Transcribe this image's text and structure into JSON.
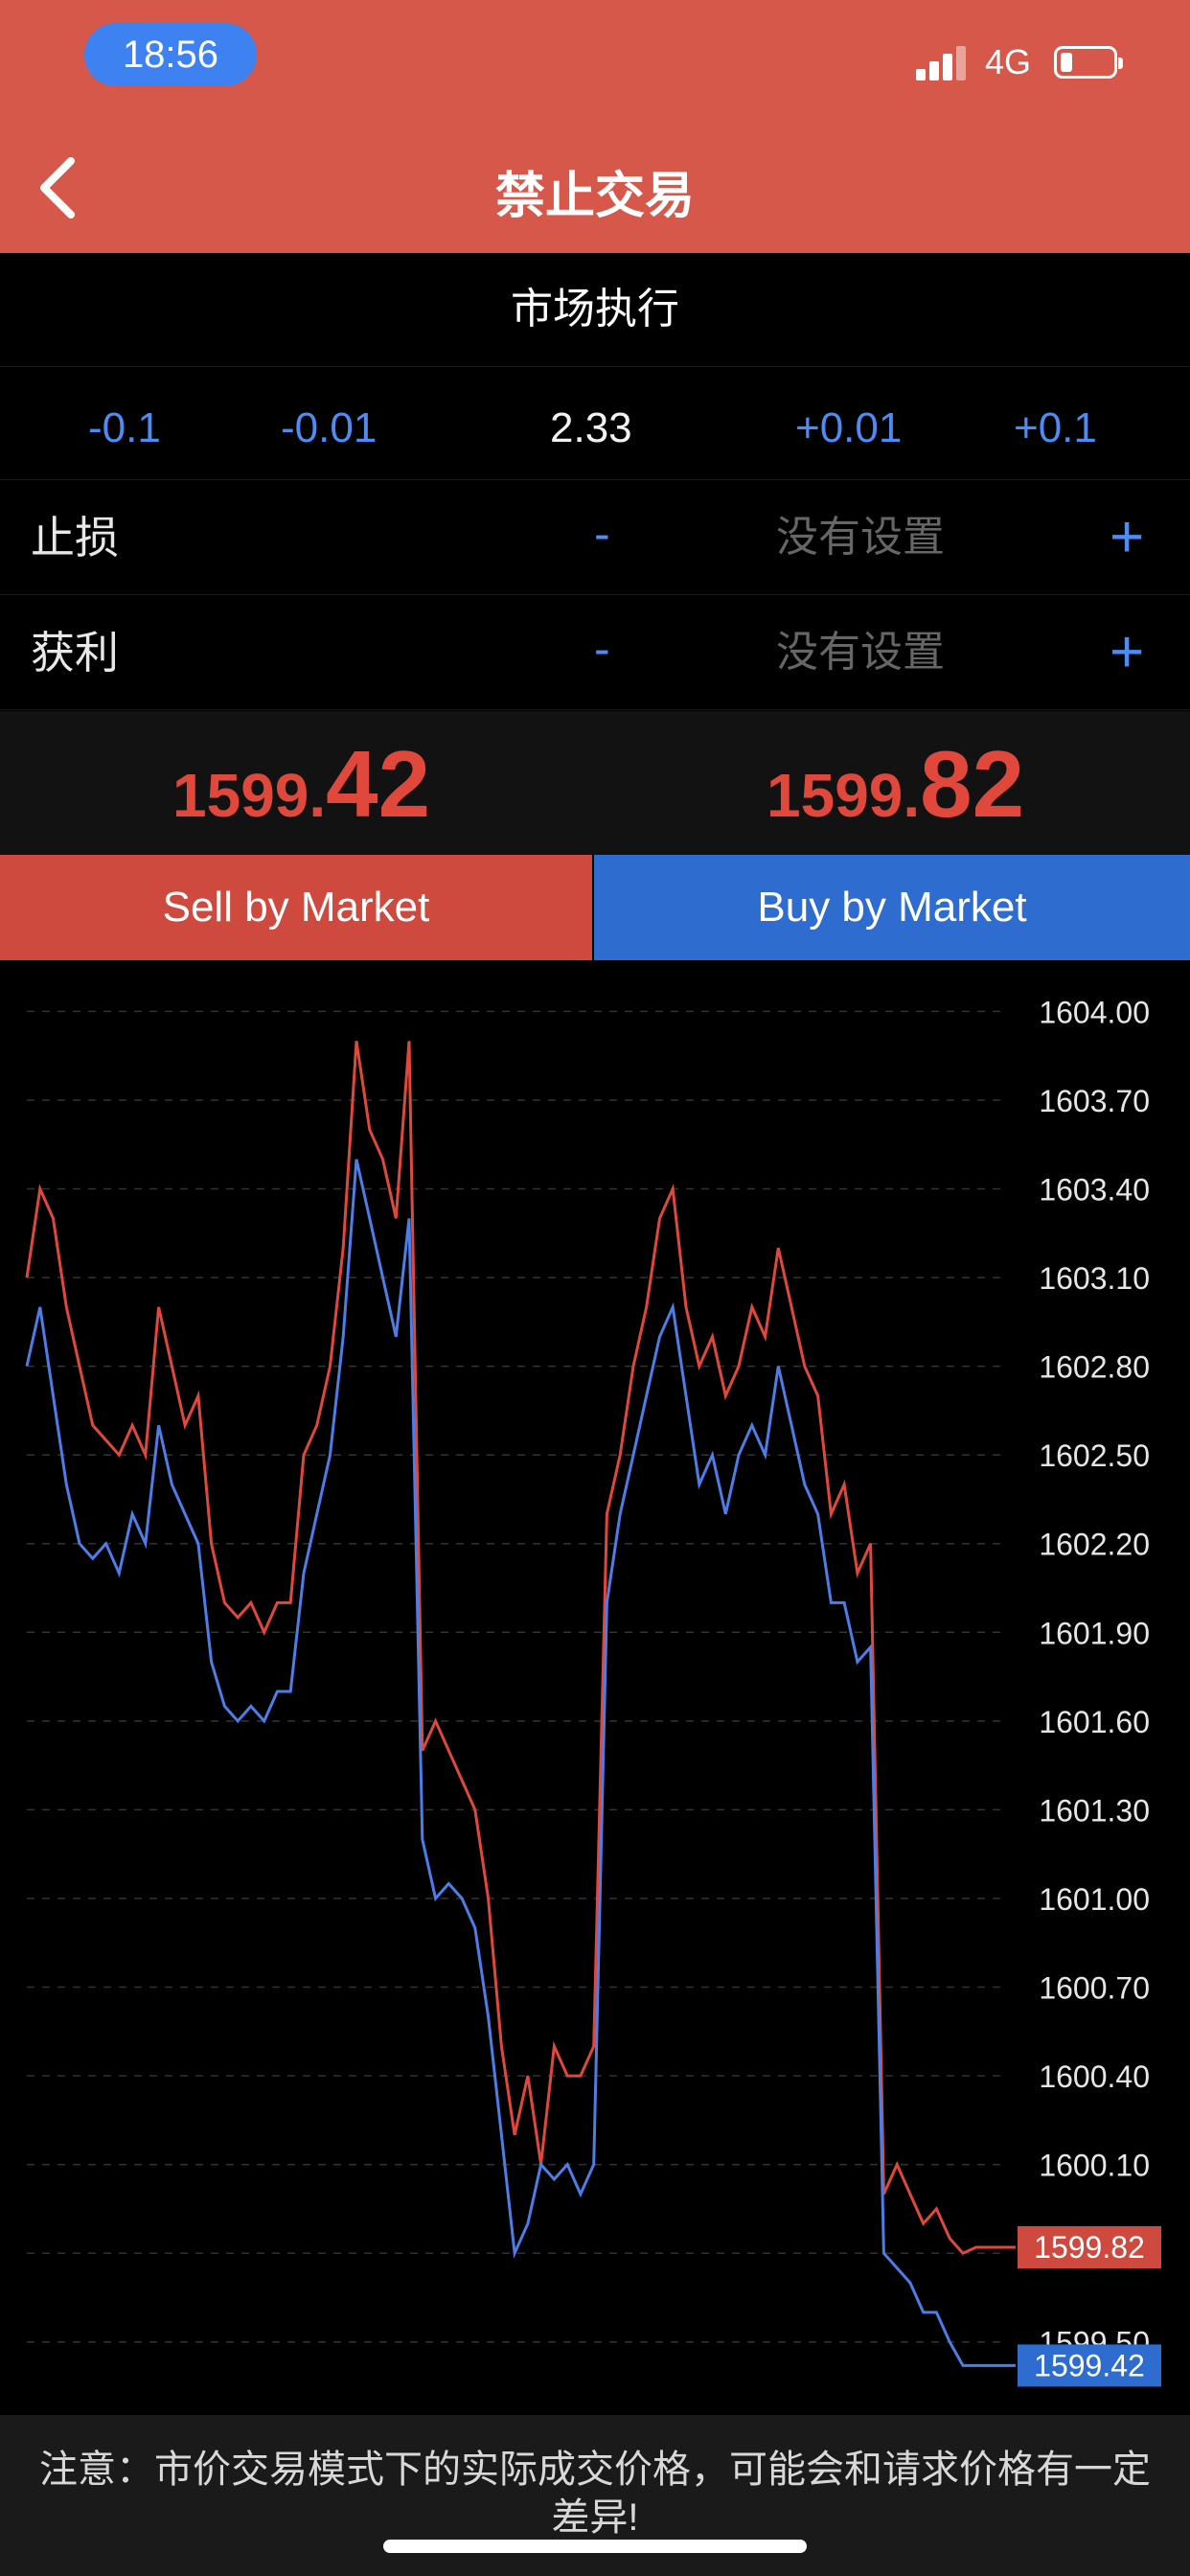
{
  "status_bar": {
    "time": "18:56",
    "network": "4G"
  },
  "nav": {
    "title": "禁止交易",
    "back_icon": "chevron-left-icon"
  },
  "execution_mode": "市场执行",
  "volume": {
    "minus_big": "-0.1",
    "minus_small": "-0.01",
    "value": "2.33",
    "plus_small": "+0.01",
    "plus_big": "+0.1"
  },
  "stop_loss": {
    "label": "止损",
    "minus": "-",
    "value": "没有设置",
    "plus": "+"
  },
  "take_profit": {
    "label": "获利",
    "minus": "-",
    "value": "没有设置",
    "plus": "+"
  },
  "prices": {
    "sell": {
      "main": "1599.",
      "pips": "42"
    },
    "buy": {
      "main": "1599.",
      "pips": "82"
    }
  },
  "buttons": {
    "sell": "Sell by Market",
    "buy": "Buy by Market"
  },
  "colors": {
    "header": "#d5584a",
    "sell": "#cf4a3e",
    "buy": "#2f6ccf",
    "ask_line": "#e0483c",
    "bid_line": "#4d7de6"
  },
  "chart_data": {
    "type": "line",
    "y_ticks": [
      "1604.00",
      "1603.70",
      "1603.40",
      "1603.10",
      "1602.80",
      "1602.50",
      "1602.20",
      "1601.90",
      "1601.60",
      "1601.30",
      "1601.00",
      "1600.70",
      "1600.40",
      "1600.10",
      "1599.80",
      "1599.50"
    ],
    "ylim": [
      1599.35,
      1604.05
    ],
    "grid": true,
    "current_ask_label": "1599.82",
    "current_bid_label": "1599.42",
    "series": [
      {
        "values": [
          1603.1,
          1603.4,
          1603.3,
          1603.0,
          1602.8,
          1602.6,
          1602.55,
          1602.5,
          1602.6,
          1602.5,
          1603.0,
          1602.8,
          1602.6,
          1602.7,
          1602.2,
          1602.0,
          1601.95,
          1602.0,
          1601.9,
          1602.0,
          1602.0,
          1602.5,
          1602.6,
          1602.8,
          1603.2,
          1603.9,
          1603.6,
          1603.5,
          1603.3,
          1603.9,
          1601.5,
          1601.6,
          1601.5,
          1601.4,
          1601.3,
          1601.0,
          1600.5,
          1600.2,
          1600.4,
          1600.1,
          1600.5,
          1600.4,
          1600.4,
          1600.5,
          1602.3,
          1602.5,
          1602.8,
          1603.0,
          1603.3,
          1603.4,
          1603.0,
          1602.8,
          1602.9,
          1602.7,
          1602.8,
          1603.0,
          1602.9,
          1603.2,
          1603.0,
          1602.8,
          1602.7,
          1602.3,
          1602.4,
          1602.1,
          1602.2,
          1600.0,
          1600.1,
          1600.0,
          1599.9,
          1599.95,
          1599.85,
          1599.8,
          1599.82,
          1599.82,
          1599.82,
          1599.82
        ]
      },
      {
        "values": [
          1602.8,
          1603.0,
          1602.7,
          1602.4,
          1602.2,
          1602.15,
          1602.2,
          1602.1,
          1602.3,
          1602.2,
          1602.6,
          1602.4,
          1602.3,
          1602.2,
          1601.8,
          1601.65,
          1601.6,
          1601.65,
          1601.6,
          1601.7,
          1601.7,
          1602.1,
          1602.3,
          1602.5,
          1602.9,
          1603.5,
          1603.3,
          1603.1,
          1602.9,
          1603.3,
          1601.2,
          1601.0,
          1601.05,
          1601.0,
          1600.9,
          1600.6,
          1600.2,
          1599.8,
          1599.9,
          1600.1,
          1600.05,
          1600.1,
          1600.0,
          1600.1,
          1602.0,
          1602.3,
          1602.5,
          1602.7,
          1602.9,
          1603.0,
          1602.7,
          1602.4,
          1602.5,
          1602.3,
          1602.5,
          1602.6,
          1602.5,
          1602.8,
          1602.6,
          1602.4,
          1602.3,
          1602.0,
          1602.0,
          1601.8,
          1601.85,
          1599.8,
          1599.75,
          1599.7,
          1599.6,
          1599.6,
          1599.5,
          1599.42,
          1599.42,
          1599.42,
          1599.42,
          1599.42
        ]
      }
    ]
  },
  "notice": "注意：市价交易模式下的实际成交价格，可能会和请求价格有一定差异!"
}
